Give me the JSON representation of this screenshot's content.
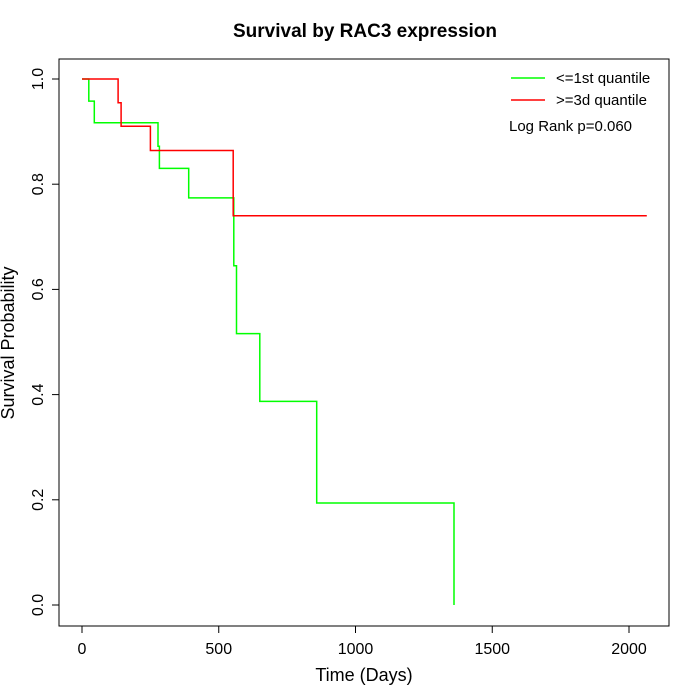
{
  "chart_data": {
    "type": "line",
    "title": "Survival by RAC3 expression",
    "xlabel": "Time (Days)",
    "ylabel": "Survival Probability",
    "xlim": [
      0,
      2070
    ],
    "ylim": [
      0,
      1.0
    ],
    "x_ticks": [
      0,
      500,
      1000,
      1500,
      2000
    ],
    "y_ticks": [
      "0.0",
      "0.2",
      "0.4",
      "0.6",
      "0.8",
      "1.0"
    ],
    "legend_position": "top-right",
    "annotation": "Log Rank p=0.060",
    "series": [
      {
        "name": "<=1st quantile",
        "color": "#00ff00",
        "step": true,
        "points": [
          [
            0,
            1.0
          ],
          [
            25,
            1.0
          ],
          [
            25,
            0.958
          ],
          [
            45,
            0.958
          ],
          [
            45,
            0.917
          ],
          [
            278,
            0.917
          ],
          [
            278,
            0.872
          ],
          [
            283,
            0.872
          ],
          [
            283,
            0.83
          ],
          [
            390,
            0.83
          ],
          [
            390,
            0.774
          ],
          [
            555,
            0.774
          ],
          [
            555,
            0.645
          ],
          [
            565,
            0.645
          ],
          [
            565,
            0.516
          ],
          [
            650,
            0.516
          ],
          [
            650,
            0.387
          ],
          [
            858,
            0.387
          ],
          [
            858,
            0.194
          ],
          [
            1360,
            0.194
          ],
          [
            1360,
            0.0
          ]
        ]
      },
      {
        "name": ">=3d quantile",
        "color": "#ff0000",
        "step": true,
        "points": [
          [
            0,
            1.0
          ],
          [
            132,
            1.0
          ],
          [
            132,
            0.955
          ],
          [
            143,
            0.955
          ],
          [
            143,
            0.91
          ],
          [
            250,
            0.91
          ],
          [
            250,
            0.864
          ],
          [
            553,
            0.864
          ],
          [
            553,
            0.74
          ],
          [
            2065,
            0.74
          ]
        ]
      }
    ]
  }
}
